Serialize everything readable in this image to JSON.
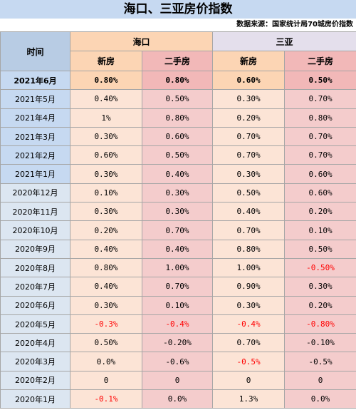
{
  "title": "海口、三亚房价指数",
  "source": "数据来源：国家统计局70城房价指数",
  "header": {
    "time": "时间",
    "cities": [
      "海口",
      "三亚"
    ],
    "new_label": "新房",
    "used_label": "二手房"
  },
  "rows": [
    {
      "date": "2021年6月",
      "hk_new": "0.80%",
      "hk_used": "0.80%",
      "sy_new": "0.60%",
      "sy_used": "0.50%"
    },
    {
      "date": "2021年5月",
      "hk_new": "0.40%",
      "hk_used": "0.50%",
      "sy_new": "0.30%",
      "sy_used": "0.70%"
    },
    {
      "date": "2021年4月",
      "hk_new": "1%",
      "hk_used": "0.80%",
      "sy_new": "0.20%",
      "sy_used": "0.80%"
    },
    {
      "date": "2021年3月",
      "hk_new": "0.30%",
      "hk_used": "0.60%",
      "sy_new": "0.70%",
      "sy_used": "0.70%"
    },
    {
      "date": "2021年2月",
      "hk_new": "0.60%",
      "hk_used": "0.50%",
      "sy_new": "0.70%",
      "sy_used": "0.70%"
    },
    {
      "date": "2021年1月",
      "hk_new": "0.30%",
      "hk_used": "0.40%",
      "sy_new": "0.30%",
      "sy_used": "0.60%"
    },
    {
      "date": "2020年12月",
      "hk_new": "0.10%",
      "hk_used": "0.30%",
      "sy_new": "0.50%",
      "sy_used": "0.60%"
    },
    {
      "date": "2020年11月",
      "hk_new": "0.30%",
      "hk_used": "0.30%",
      "sy_new": "0.40%",
      "sy_used": "0.20%"
    },
    {
      "date": "2020年10月",
      "hk_new": "0.20%",
      "hk_used": "0.70%",
      "sy_new": "0.70%",
      "sy_used": "0.10%"
    },
    {
      "date": "2020年9月",
      "hk_new": "0.40%",
      "hk_used": "0.40%",
      "sy_new": "0.80%",
      "sy_used": "0.50%"
    },
    {
      "date": "2020年8月",
      "hk_new": "0.80%",
      "hk_used": "1.00%",
      "sy_new": "1.00%",
      "sy_used": "-0.50%"
    },
    {
      "date": "2020年7月",
      "hk_new": "0.40%",
      "hk_used": "0.70%",
      "sy_new": "0.90%",
      "sy_used": "0.30%"
    },
    {
      "date": "2020年6月",
      "hk_new": "0.30%",
      "hk_used": "0.10%",
      "sy_new": "0.30%",
      "sy_used": "0.20%"
    },
    {
      "date": "2020年5月",
      "hk_new": "-0.3%",
      "hk_used": "-0.4%",
      "sy_new": "-0.4%",
      "sy_used": "-0.80%"
    },
    {
      "date": "2020年4月",
      "hk_new": "0.50%",
      "hk_used": "-0.20%",
      "sy_new": "0.70%",
      "sy_used": "-0.10%"
    },
    {
      "date": "2020年3月",
      "hk_new": "0.0%",
      "hk_used": "-0.6%",
      "sy_new": "-0.5%",
      "sy_used": "-0.5%"
    },
    {
      "date": "2020年2月",
      "hk_new": "0",
      "hk_used": "0",
      "sy_new": "0",
      "sy_used": "0"
    },
    {
      "date": "2020年1月",
      "hk_new": "-0.1%",
      "hk_used": "0.0%",
      "sy_new": "1.3%",
      "sy_used": "0.0%"
    }
  ],
  "red_cells": [
    "13:hk_new",
    "13:hk_used",
    "13:sy_new",
    "13:sy_used",
    "10:sy_used",
    "15:sy_new",
    "17:hk_new"
  ]
}
